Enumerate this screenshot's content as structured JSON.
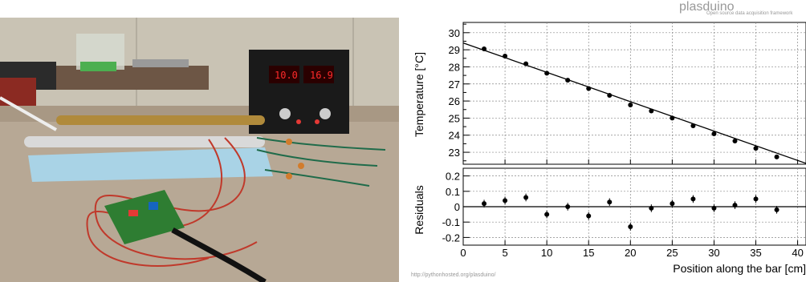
{
  "brand": {
    "name": "plasduino",
    "tagline": "Open source data acquisition framework"
  },
  "footer_url": "http://pythonhosted.org/plasduino/",
  "photo": {
    "description_icon": "lab-setup-photo",
    "display_left": "10.0",
    "display_right": "16.9"
  },
  "chart_data": [
    {
      "type": "scatter",
      "panel": "main",
      "ylabel": "Temperature [°C]",
      "ylim": [
        22.3,
        30.6
      ],
      "yticks": [
        23,
        24,
        25,
        26,
        27,
        28,
        29,
        30
      ],
      "xlim": [
        0,
        41
      ],
      "grid": true,
      "points": {
        "x": [
          2.5,
          5,
          7.5,
          10,
          12.5,
          15,
          17.5,
          20,
          22.5,
          25,
          27.5,
          30,
          32.5,
          35,
          37.5
        ],
        "y": [
          29.05,
          28.63,
          28.18,
          27.63,
          27.22,
          26.73,
          26.33,
          25.77,
          25.42,
          25.0,
          24.55,
          24.08,
          23.66,
          23.23,
          22.73
        ]
      },
      "fit_line": {
        "x": [
          0,
          41
        ],
        "y": [
          29.4,
          22.35
        ]
      }
    },
    {
      "type": "scatter",
      "panel": "residuals",
      "ylabel": "Residuals",
      "xlabel": "Position along the bar [cm]",
      "ylim": [
        -0.25,
        0.25
      ],
      "yticks": [
        -0.2,
        -0.1,
        0,
        0.1,
        0.2
      ],
      "ytick_labels": [
        "-0.2",
        "-0.1",
        "0",
        "0.1",
        "0.2"
      ],
      "xlim": [
        0,
        41
      ],
      "xticks": [
        0,
        5,
        10,
        15,
        20,
        25,
        30,
        35,
        40
      ],
      "xtick_labels": [
        "0",
        "5",
        "10",
        "15",
        "20",
        "25",
        "30",
        "35",
        "40"
      ],
      "grid": true,
      "zero_line": true,
      "points": {
        "x": [
          2.5,
          5,
          7.5,
          10,
          12.5,
          15,
          17.5,
          20,
          22.5,
          25,
          27.5,
          30,
          32.5,
          35,
          37.5
        ],
        "y": [
          0.02,
          0.04,
          0.06,
          -0.05,
          0.0,
          -0.06,
          0.03,
          -0.13,
          -0.01,
          0.02,
          0.05,
          -0.01,
          0.01,
          0.05,
          -0.02
        ],
        "err": [
          0.025,
          0.025,
          0.025,
          0.025,
          0.025,
          0.025,
          0.025,
          0.025,
          0.025,
          0.025,
          0.025,
          0.025,
          0.025,
          0.025,
          0.025
        ]
      }
    }
  ]
}
